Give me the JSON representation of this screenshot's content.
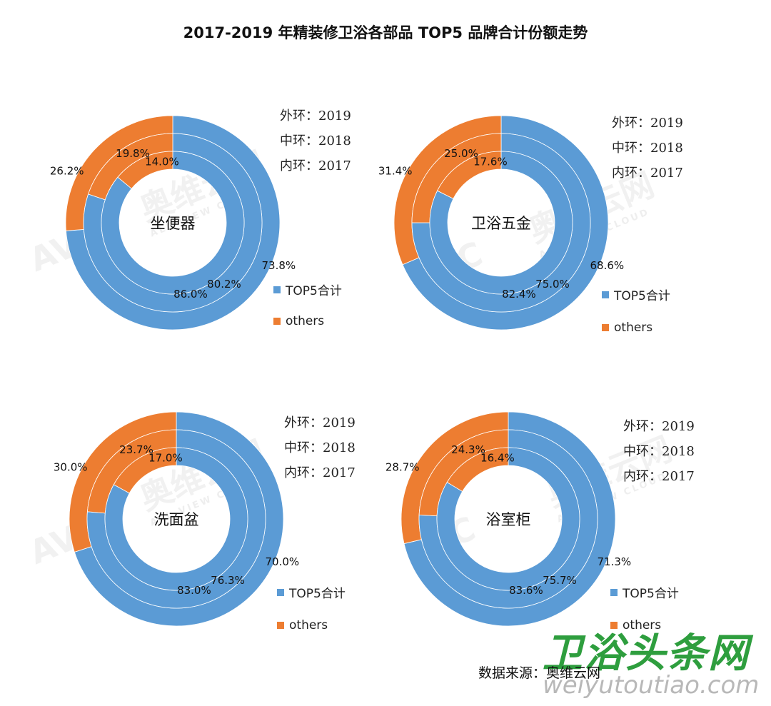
{
  "title": "2017-2019 年精装修卫浴各部品 TOP5 品牌合计份额走势",
  "source": "数据来源：奥维云网",
  "watermark": {
    "site_logo": "卫浴头条网",
    "site_url": "weiyutoutiao.com",
    "brand_text": "奥维云网",
    "brand_sub": "ALL VIEW CLOUD",
    "brand_abbr": "AVC"
  },
  "colors": {
    "top5": "#5b9bd5",
    "others": "#ed7d31"
  },
  "chart_data": [
    {
      "type": "donut",
      "center_label": "坐便器",
      "ring_labels": [
        "外环：2019",
        "中环：2018",
        "内环：2017"
      ],
      "legend": [
        "TOP5合计",
        "others"
      ],
      "rings": [
        {
          "year": "2019",
          "top5": 73.8,
          "others": 26.2,
          "top5_label": "73.8%",
          "others_label": "26.2%"
        },
        {
          "year": "2018",
          "top5": 80.2,
          "others": 19.8,
          "top5_label": "80.2%",
          "others_label": "19.8%"
        },
        {
          "year": "2017",
          "top5": 86.0,
          "others": 14.0,
          "top5_label": "86.0%",
          "others_label": "14.0%"
        }
      ]
    },
    {
      "type": "donut",
      "center_label": "卫浴五金",
      "ring_labels": [
        "外环：2019",
        "中环：2018",
        "内环：2017"
      ],
      "legend": [
        "TOP5合计",
        "others"
      ],
      "rings": [
        {
          "year": "2019",
          "top5": 68.6,
          "others": 31.4,
          "top5_label": "68.6%",
          "others_label": "31.4%"
        },
        {
          "year": "2018",
          "top5": 75.0,
          "others": 25.0,
          "top5_label": "75.0%",
          "others_label": "25.0%"
        },
        {
          "year": "2017",
          "top5": 82.4,
          "others": 17.6,
          "top5_label": "82.4%",
          "others_label": "17.6%"
        }
      ]
    },
    {
      "type": "donut",
      "center_label": "洗面盆",
      "ring_labels": [
        "外环：2019",
        "中环：2018",
        "内环：2017"
      ],
      "legend": [
        "TOP5合计",
        "others"
      ],
      "rings": [
        {
          "year": "2019",
          "top5": 70.0,
          "others": 30.0,
          "top5_label": "70.0%",
          "others_label": "30.0%"
        },
        {
          "year": "2018",
          "top5": 76.3,
          "others": 23.7,
          "top5_label": "76.3%",
          "others_label": "23.7%"
        },
        {
          "year": "2017",
          "top5": 83.0,
          "others": 17.0,
          "top5_label": "83.0%",
          "others_label": "17.0%"
        }
      ]
    },
    {
      "type": "donut",
      "center_label": "浴室柜",
      "ring_labels": [
        "外环：2019",
        "中环：2018",
        "内环：2017"
      ],
      "legend": [
        "TOP5合计",
        "others"
      ],
      "rings": [
        {
          "year": "2019",
          "top5": 71.3,
          "others": 28.7,
          "top5_label": "71.3%",
          "others_label": "28.7%"
        },
        {
          "year": "2018",
          "top5": 75.7,
          "others": 24.3,
          "top5_label": "75.7%",
          "others_label": "24.3%"
        },
        {
          "year": "2017",
          "top5": 83.6,
          "others": 16.4,
          "top5_label": "83.6%",
          "others_label": "16.4%"
        }
      ]
    }
  ]
}
